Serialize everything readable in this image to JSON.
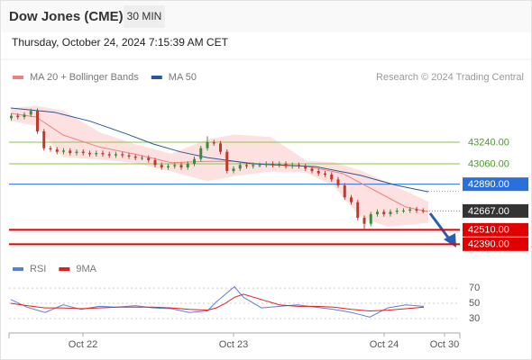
{
  "header": {
    "title": "Dow Jones (CME)",
    "interval": "30 MIN",
    "datetime": "Thursday, October 24, 2024 7:15:39 AM CET"
  },
  "chart_data": [
    {
      "type": "candlestick",
      "source": "Research © 2024 Trading Central",
      "up_color": "#3d8b3d",
      "down_color": "#c0392b",
      "xlim": [
        0,
        100
      ],
      "xticks": [
        {
          "value": 16.4,
          "label": "Oct 22"
        },
        {
          "value": 49.8,
          "label": "Oct 23"
        },
        {
          "value": 83.2,
          "label": "Oct 24"
        },
        {
          "value": 96.6,
          "label": "Oct 30"
        }
      ],
      "ylim": [
        42287.5,
        43675
      ],
      "x": [
        0.5,
        1.95,
        3.4,
        4.85,
        6.3,
        7.75,
        9.2,
        10.65,
        12.1,
        13.55,
        15,
        16.45,
        17.9,
        19.35,
        20.8,
        22.25,
        23.7,
        25.15,
        26.6,
        28.05,
        29.5,
        30.95,
        32.4,
        33.85,
        35.3,
        36.75,
        38.2,
        39.65,
        41.1,
        42.55,
        44,
        45.45,
        46.9,
        48.35,
        49.8,
        51.25,
        52.7,
        54.15,
        55.6,
        57.05,
        58.5,
        59.95,
        61.4,
        62.85,
        64.3,
        65.75,
        67.2,
        68.65,
        70.1,
        71.55,
        73,
        74.45,
        75.9,
        77.35,
        78.8,
        80.25,
        81.7,
        83.15,
        84.6,
        86.05,
        87.5,
        88.95,
        90.4,
        91.85
      ],
      "open": [
        43440,
        43460,
        43450,
        43470,
        43500,
        43330,
        43190,
        43180,
        43160,
        43170,
        43150,
        43160,
        43150,
        43140,
        43150,
        43140,
        43130,
        43140,
        43130,
        43120,
        43110,
        43110,
        43090,
        43050,
        43030,
        43040,
        43050,
        43030,
        43060,
        43100,
        43190,
        43240,
        43230,
        43160,
        43000,
        43020,
        43050,
        43040,
        43050,
        43050,
        43060,
        43050,
        43060,
        43040,
        43050,
        43040,
        43020,
        43000,
        42980,
        42970,
        42930,
        42880,
        42780,
        42740,
        42610,
        42560,
        42640,
        42660,
        42640,
        42660,
        42670,
        42670,
        42680,
        42670
      ],
      "high": [
        43480,
        43480,
        43490,
        43520,
        43520,
        43350,
        43210,
        43200,
        43190,
        43190,
        43180,
        43180,
        43170,
        43170,
        43170,
        43160,
        43160,
        43160,
        43150,
        43140,
        43130,
        43130,
        43110,
        43070,
        43060,
        43070,
        43070,
        43080,
        43120,
        43210,
        43290,
        43260,
        43250,
        43180,
        43040,
        43070,
        43070,
        43070,
        43070,
        43080,
        43080,
        43080,
        43080,
        43070,
        43070,
        43060,
        43040,
        43020,
        43000,
        42990,
        42950,
        42900,
        42800,
        42760,
        42630,
        42660,
        42680,
        42680,
        42680,
        42690,
        42690,
        42700,
        42700,
        42690
      ],
      "low": [
        43420,
        43430,
        43430,
        43450,
        43310,
        43170,
        43160,
        43140,
        43140,
        43130,
        43130,
        43130,
        43120,
        43120,
        43120,
        43110,
        43110,
        43110,
        43100,
        43090,
        43090,
        43070,
        43030,
        43010,
        43010,
        43020,
        43010,
        43010,
        43040,
        43080,
        43170,
        43210,
        43140,
        42980,
        42980,
        43000,
        43020,
        43020,
        43030,
        43030,
        43030,
        43030,
        43020,
        43020,
        43020,
        43000,
        42980,
        42960,
        42950,
        42910,
        42860,
        42760,
        42720,
        42590,
        42510,
        42540,
        42620,
        42620,
        42620,
        42640,
        42650,
        42650,
        42650,
        42647
      ],
      "close": [
        43460,
        43450,
        43470,
        43500,
        43330,
        43190,
        43180,
        43160,
        43170,
        43150,
        43160,
        43150,
        43140,
        43150,
        43140,
        43130,
        43140,
        43130,
        43120,
        43110,
        43110,
        43090,
        43050,
        43030,
        43040,
        43050,
        43030,
        43060,
        43100,
        43190,
        43240,
        43230,
        43160,
        43000,
        43020,
        43050,
        43040,
        43050,
        43050,
        43060,
        43050,
        43060,
        43040,
        43050,
        43040,
        43020,
        43000,
        42980,
        42970,
        42930,
        42880,
        42780,
        42740,
        42610,
        42560,
        42640,
        42660,
        42640,
        42660,
        42670,
        42670,
        42680,
        42670,
        42667
      ],
      "series": [
        {
          "name": "MA 20 + Bollinger Bands",
          "color": "#f08080",
          "x": [
            0.4,
            6,
            12,
            20,
            28,
            36,
            44,
            50,
            58,
            66,
            74,
            82,
            88,
            93
          ],
          "values": [
            43480,
            43450,
            43300,
            43200,
            43140,
            43070,
            43080,
            43080,
            43050,
            43040,
            42980,
            42820,
            42700,
            42660
          ]
        },
        {
          "name": "MA 50",
          "color": "#2b5797",
          "x": [
            0.4,
            10,
            18,
            26,
            32,
            38,
            44,
            54,
            68,
            78,
            86,
            93
          ],
          "values": [
            43525,
            43490,
            43415,
            43310,
            43225,
            43160,
            43112,
            43060,
            43037,
            42963,
            42880,
            42827
          ]
        }
      ],
      "bands": {
        "color": "#fde0e0",
        "x": [
          0.4,
          6,
          12,
          20,
          28,
          36,
          44,
          50,
          58,
          66,
          72,
          78,
          84,
          93
        ],
        "upper": [
          43520,
          43540,
          43500,
          43320,
          43220,
          43140,
          43260,
          43300,
          43280,
          43080,
          43070,
          43000,
          42900,
          42740
        ],
        "lower": [
          43420,
          43380,
          43120,
          43100,
          43070,
          43000,
          42920,
          42960,
          43000,
          42990,
          42880,
          42620,
          42540,
          42570
        ]
      },
      "levels": [
        {
          "value": 43240,
          "label": "43240.00",
          "color": "#8bc34a",
          "text_color": "#4c9a2a",
          "style": "line"
        },
        {
          "value": 43060,
          "label": "43060.00",
          "color": "#8bc34a",
          "text_color": "#4c9a2a",
          "style": "line"
        },
        {
          "value": 42890,
          "label": "42890.00",
          "color": "#2a6fdb",
          "text_color": "#ffffff",
          "style": "box"
        },
        {
          "value": 42667,
          "label": "42667.00",
          "color": "#333333",
          "text_color": "#ffffff",
          "style": "last"
        },
        {
          "value": 42510,
          "label": "42510.00",
          "color": "#e00000",
          "text_color": "#ffffff",
          "style": "box"
        },
        {
          "value": 42390,
          "label": "42390.00",
          "color": "#e00000",
          "text_color": "#ffffff",
          "style": "box"
        }
      ]
    },
    {
      "type": "line",
      "xlim": [
        0,
        100
      ],
      "ylim": [
        11,
        82
      ],
      "yticks": [
        70,
        50,
        30
      ],
      "grid": true,
      "series": [
        {
          "name": "RSI",
          "color": "#5b7fd6",
          "x": [
            0.4,
            4,
            8,
            12,
            16,
            20,
            24,
            28,
            32,
            36,
            40,
            44,
            46,
            48,
            50,
            52,
            56,
            60,
            64,
            68,
            72,
            76,
            80,
            84,
            88,
            92
          ],
          "values": [
            55,
            45,
            38,
            48,
            42,
            46,
            45,
            47,
            44,
            43,
            38,
            40,
            52,
            62,
            72,
            58,
            44,
            46,
            48,
            45,
            42,
            38,
            32,
            44,
            48,
            46
          ]
        },
        {
          "name": "9MA",
          "color": "#e02020",
          "x": [
            0.4,
            4,
            8,
            12,
            16,
            20,
            24,
            28,
            32,
            36,
            40,
            44,
            46,
            48,
            50,
            52,
            56,
            60,
            64,
            68,
            72,
            76,
            80,
            84,
            88,
            92
          ],
          "values": [
            50,
            47,
            44,
            44,
            43,
            44,
            45,
            45,
            45,
            44,
            42,
            41,
            44,
            50,
            58,
            62,
            55,
            48,
            46,
            46,
            45,
            42,
            40,
            41,
            43,
            45
          ]
        }
      ]
    }
  ]
}
